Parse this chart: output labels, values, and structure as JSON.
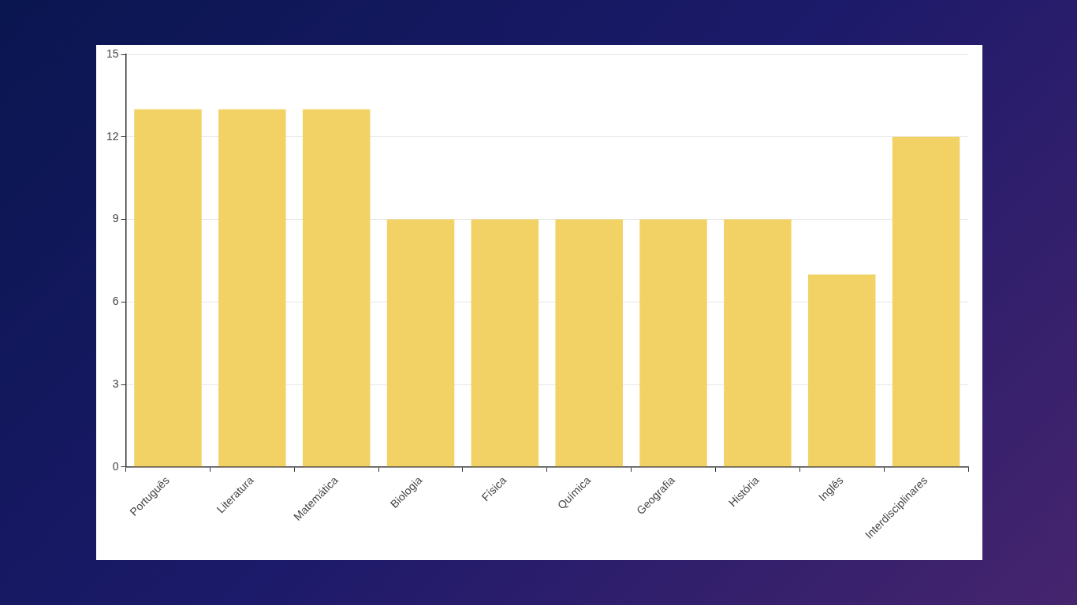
{
  "chart_data": {
    "type": "bar",
    "categories": [
      "Português",
      "Literatura",
      "Matemática",
      "Biologia",
      "Física",
      "Química",
      "Geografia",
      "História",
      "Inglês",
      "Interdisciplinares"
    ],
    "values": [
      13,
      13,
      13,
      9,
      9,
      9,
      9,
      9,
      7,
      12
    ],
    "color": "#f2d264",
    "ylim": [
      0,
      15
    ],
    "yticks": [
      0,
      3,
      6,
      9,
      12,
      15
    ],
    "grid": "y",
    "legend": false
  }
}
